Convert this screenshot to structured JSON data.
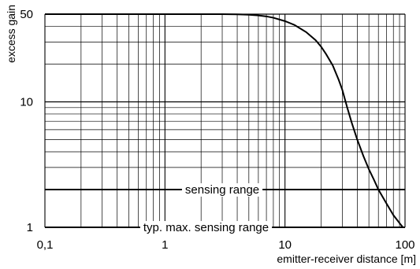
{
  "chart_data": {
    "type": "line",
    "xscale": "log",
    "yscale": "log",
    "xlim": [
      0.1,
      100
    ],
    "ylim": [
      1,
      50
    ],
    "grid": true,
    "xlabel": "emitter-receiver distance [m]",
    "ylabel": "excess gain",
    "x_ticks": [
      {
        "value": 0.1,
        "label": "0,1"
      },
      {
        "value": 1,
        "label": "1"
      },
      {
        "value": 10,
        "label": "10"
      },
      {
        "value": 100,
        "label": "100"
      }
    ],
    "y_ticks": [
      {
        "value": 1,
        "label": "1"
      },
      {
        "value": 10,
        "label": "10"
      },
      {
        "value": 50,
        "label": "50"
      }
    ],
    "series": [
      {
        "x": [
          0.1,
          1,
          2,
          3,
          4,
          5,
          6,
          7,
          8,
          10,
          12,
          15,
          18,
          20,
          22,
          25,
          28,
          30,
          33,
          36,
          40,
          45,
          50,
          55,
          60,
          70,
          80,
          90,
          96
        ],
        "y": [
          50,
          50,
          50,
          50,
          49.8,
          49.5,
          48.8,
          48,
          46.8,
          44,
          41,
          36,
          31,
          27.5,
          24,
          19.5,
          15,
          12.5,
          9,
          6.8,
          5,
          3.7,
          2.9,
          2.4,
          2.0,
          1.55,
          1.25,
          1.08,
          1.0
        ]
      }
    ],
    "annotations": [
      {
        "text": "sensing range",
        "y": 2
      },
      {
        "text": "typ. max. sensing range",
        "y": 1
      }
    ]
  }
}
